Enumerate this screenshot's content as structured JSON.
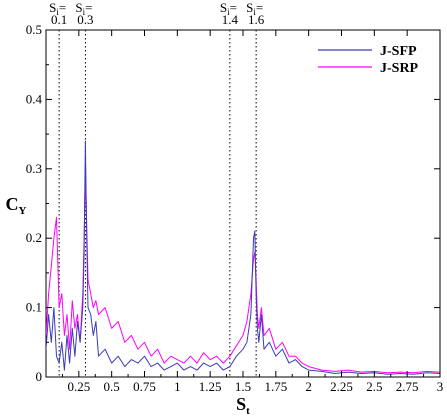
{
  "chart_data": {
    "type": "line",
    "title": "",
    "xlabel": {
      "main": "S",
      "sub": "t"
    },
    "ylabel": {
      "main": "C",
      "sub": "Y"
    },
    "xlim": [
      0,
      3
    ],
    "ylim": [
      0,
      0.5
    ],
    "x_ticks": [
      {
        "value": 0.25,
        "label": "0.25"
      },
      {
        "value": 0.5,
        "label": "0.5"
      },
      {
        "value": 0.75,
        "label": "0.75"
      },
      {
        "value": 1,
        "label": "1"
      },
      {
        "value": 1.25,
        "label": "1.25"
      },
      {
        "value": 1.5,
        "label": "1.5"
      },
      {
        "value": 1.75,
        "label": "1.75"
      },
      {
        "value": 2,
        "label": "2"
      },
      {
        "value": 2.25,
        "label": "2.25"
      },
      {
        "value": 2.5,
        "label": "2.5"
      },
      {
        "value": 2.75,
        "label": "2.75"
      },
      {
        "value": 3,
        "label": "3"
      }
    ],
    "y_ticks": [
      {
        "value": 0,
        "label": "0"
      },
      {
        "value": 0.1,
        "label": "0.1"
      },
      {
        "value": 0.2,
        "label": "0.2"
      },
      {
        "value": 0.3,
        "label": "0.3"
      },
      {
        "value": 0.4,
        "label": "0.4"
      },
      {
        "value": 0.5,
        "label": "0.5"
      }
    ],
    "legend_position": "top-right",
    "grid": false,
    "annotations": [
      {
        "x": 0.1,
        "main": "S",
        "sub": "i",
        "suffix": "=",
        "value_label": "0.1"
      },
      {
        "x": 0.3,
        "main": "S",
        "sub": "i",
        "suffix": "=",
        "value_label": "0.3"
      },
      {
        "x": 1.4,
        "main": "S",
        "sub": "i",
        "suffix": "=",
        "value_label": "1.4"
      },
      {
        "x": 1.6,
        "main": "S",
        "sub": "i",
        "suffix": "=",
        "value_label": "1.6"
      }
    ],
    "series": [
      {
        "name": "J-SFP",
        "color": "#3b3bb8",
        "x": [
          0.0,
          0.02,
          0.04,
          0.06,
          0.08,
          0.1,
          0.12,
          0.14,
          0.16,
          0.18,
          0.2,
          0.22,
          0.24,
          0.26,
          0.28,
          0.29,
          0.3,
          0.31,
          0.32,
          0.34,
          0.36,
          0.38,
          0.4,
          0.45,
          0.5,
          0.55,
          0.6,
          0.65,
          0.7,
          0.75,
          0.8,
          0.85,
          0.9,
          0.95,
          1.0,
          1.05,
          1.1,
          1.15,
          1.2,
          1.25,
          1.3,
          1.35,
          1.4,
          1.45,
          1.5,
          1.53,
          1.56,
          1.58,
          1.59,
          1.6,
          1.61,
          1.62,
          1.64,
          1.66,
          1.7,
          1.75,
          1.8,
          1.85,
          1.9,
          1.95,
          2.0,
          2.1,
          2.2,
          2.3,
          2.4,
          2.5,
          2.6,
          2.7,
          2.8,
          2.9,
          3.0
        ],
        "y": [
          0.04,
          0.09,
          0.05,
          0.1,
          0.03,
          0.02,
          0.05,
          0.01,
          0.06,
          0.02,
          0.07,
          0.03,
          0.08,
          0.05,
          0.1,
          0.18,
          0.34,
          0.2,
          0.1,
          0.09,
          0.06,
          0.08,
          0.03,
          0.04,
          0.02,
          0.03,
          0.015,
          0.025,
          0.02,
          0.03,
          0.015,
          0.02,
          0.01,
          0.015,
          0.02,
          0.01,
          0.015,
          0.01,
          0.02,
          0.015,
          0.02,
          0.01,
          0.015,
          0.03,
          0.04,
          0.05,
          0.09,
          0.2,
          0.21,
          0.12,
          0.07,
          0.05,
          0.09,
          0.04,
          0.05,
          0.03,
          0.04,
          0.02,
          0.025,
          0.015,
          0.01,
          0.008,
          0.005,
          0.007,
          0.005,
          0.006,
          0.004,
          0.005,
          0.004,
          0.006,
          0.005
        ]
      },
      {
        "name": "J-SRP",
        "color": "#ff00ff",
        "x": [
          0.0,
          0.02,
          0.04,
          0.06,
          0.08,
          0.1,
          0.12,
          0.14,
          0.16,
          0.18,
          0.2,
          0.22,
          0.24,
          0.26,
          0.28,
          0.29,
          0.3,
          0.31,
          0.32,
          0.34,
          0.36,
          0.38,
          0.4,
          0.45,
          0.5,
          0.55,
          0.6,
          0.65,
          0.7,
          0.75,
          0.8,
          0.85,
          0.9,
          0.95,
          1.0,
          1.05,
          1.1,
          1.15,
          1.2,
          1.25,
          1.3,
          1.35,
          1.4,
          1.45,
          1.5,
          1.53,
          1.56,
          1.58,
          1.59,
          1.6,
          1.61,
          1.62,
          1.64,
          1.66,
          1.7,
          1.75,
          1.8,
          1.85,
          1.9,
          1.95,
          2.0,
          2.1,
          2.2,
          2.3,
          2.4,
          2.5,
          2.6,
          2.7,
          2.8,
          2.9,
          3.0
        ],
        "y": [
          0.06,
          0.12,
          0.16,
          0.2,
          0.23,
          0.1,
          0.12,
          0.06,
          0.09,
          0.04,
          0.11,
          0.07,
          0.09,
          0.05,
          0.12,
          0.2,
          0.3,
          0.22,
          0.14,
          0.12,
          0.1,
          0.11,
          0.09,
          0.1,
          0.07,
          0.08,
          0.05,
          0.06,
          0.04,
          0.05,
          0.03,
          0.04,
          0.02,
          0.03,
          0.025,
          0.02,
          0.03,
          0.02,
          0.035,
          0.025,
          0.03,
          0.02,
          0.03,
          0.045,
          0.06,
          0.08,
          0.12,
          0.17,
          0.18,
          0.14,
          0.09,
          0.07,
          0.1,
          0.06,
          0.07,
          0.04,
          0.05,
          0.03,
          0.03,
          0.02,
          0.015,
          0.01,
          0.008,
          0.01,
          0.007,
          0.008,
          0.006,
          0.007,
          0.006,
          0.008,
          0.007
        ]
      }
    ]
  }
}
